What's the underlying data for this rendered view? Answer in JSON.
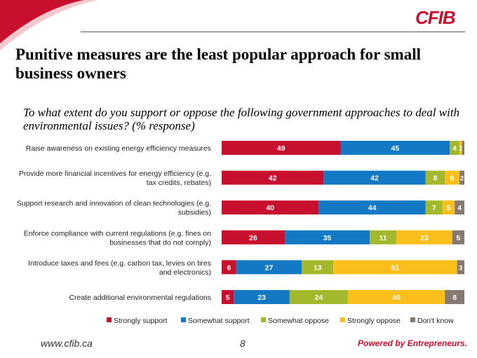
{
  "brand": {
    "logo_text": "CFIB",
    "tagline": "Powered by Entrepreneurs."
  },
  "title": "Punitive measures are the least popular approach for small business owners",
  "question": "To what extent do you support or oppose the following government approaches to deal with environmental issues? (% response)",
  "footer": {
    "url": "www.cfib.ca",
    "page": "8"
  },
  "colors": {
    "accent": "#c8102e"
  },
  "chart_data": {
    "type": "bar",
    "orientation": "horizontal",
    "stacked": true,
    "categories": [
      [
        "Raise awareness on existing energy efficiency measures"
      ],
      [
        "Provide more financial incentives for energy efficiency (e.g.",
        "tax credits, rebates)"
      ],
      [
        "Support research and innovation of clean technologies (e.g.",
        "subsidies)"
      ],
      [
        "Enforce compliance with current regulations (e.g. fines on",
        "businesses that do not comply)"
      ],
      [
        "Introduce taxes and fees (e.g. carbon tax, levies on tires",
        "and electronics)"
      ],
      [
        "Create additional environmental regulations"
      ]
    ],
    "series": [
      {
        "name": "Strongly support",
        "color": "#c8102e",
        "values": [
          49,
          42,
          40,
          26,
          6,
          5
        ]
      },
      {
        "name": "Somewhat support",
        "color": "#1479c4",
        "values": [
          45,
          42,
          44,
          35,
          27,
          23
        ]
      },
      {
        "name": "Somewhat oppose",
        "color": "#a3b92b",
        "values": [
          4,
          8,
          7,
          11,
          13,
          24
        ]
      },
      {
        "name": "Strongly oppose",
        "color": "#fbbf1c",
        "values": [
          1,
          6,
          5,
          23,
          51,
          40
        ]
      },
      {
        "name": "Don't know",
        "color": "#857974",
        "values": [
          1,
          2,
          4,
          5,
          3,
          8
        ]
      }
    ],
    "data_labels_shown": [
      [
        "49",
        "45",
        "4",
        "1",
        ""
      ],
      [
        "42",
        "42",
        "8",
        "6",
        "2"
      ],
      [
        "40",
        "44",
        "7",
        "5",
        "4"
      ],
      [
        "26",
        "35",
        "11",
        "23",
        "5"
      ],
      [
        "6",
        "27",
        "13",
        "51",
        "3"
      ],
      [
        "5",
        "23",
        "24",
        "40",
        "8"
      ]
    ],
    "xlim": [
      0,
      100
    ],
    "legend_position": "bottom",
    "grid": false
  }
}
